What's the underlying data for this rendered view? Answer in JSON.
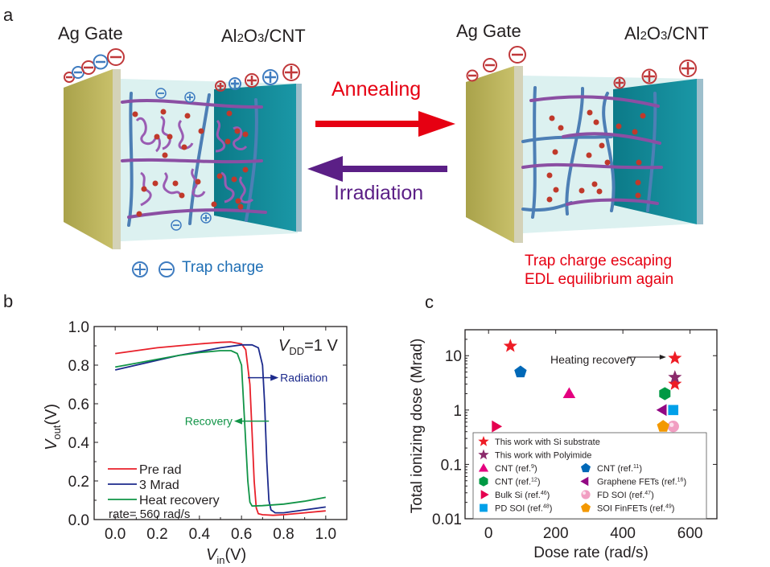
{
  "panels": {
    "a": {
      "letter": "a",
      "left_device": {
        "gate_label": "Ag Gate",
        "channel_label_parts": [
          "Al",
          "2",
          "O",
          "3",
          "/CNT"
        ]
      },
      "right_device": {
        "gate_label": "Ag Gate",
        "channel_label_parts": [
          "Al",
          "2",
          "O",
          "3",
          "/CNT"
        ]
      },
      "arrow_forward": {
        "label": "Annealing",
        "color": "#e60012"
      },
      "arrow_backward": {
        "label": "Irradiation",
        "color": "#5b1f86"
      },
      "left_caption": "Trap charge",
      "right_caption_lines": [
        "Trap charge escaping",
        "EDL equilibrium again"
      ],
      "colors": {
        "gate": "#c0b95a",
        "channel": "#148c9c",
        "gel": "#d8efee",
        "cnt": "#4d7fb5",
        "polymer": "#8b4fa3",
        "ion": "#c0392b",
        "plus_minus_red": "#c0393b",
        "plus_minus_blue": "#3f7cc0",
        "caption_blue": "#1f6fb5",
        "caption_red": "#e60012"
      }
    },
    "b": {
      "letter": "b"
    },
    "c": {
      "letter": "c"
    }
  },
  "chart_data": [
    {
      "type": "line",
      "panel": "b",
      "title": "",
      "xlabel": "V_in (V)",
      "xlabel_main": "V",
      "xlabel_sub": "in",
      "xlabel_unit": "(V)",
      "ylabel_main": "V",
      "ylabel_sub": "out",
      "ylabel_unit": "(V)",
      "xlim": [
        -0.1,
        1.1
      ],
      "ylim": [
        0.0,
        1.0
      ],
      "xticks": [
        0.0,
        0.2,
        0.4,
        0.6,
        0.8,
        1.0
      ],
      "xtick_labels": [
        "0.0",
        "0.2",
        "0.4",
        "0.6",
        "0.8",
        "1.0"
      ],
      "yticks": [
        0.0,
        0.2,
        0.4,
        0.6,
        0.8,
        1.0
      ],
      "ytick_labels": [
        "0.0",
        "0.2",
        "0.4",
        "0.6",
        "0.8",
        "1.0"
      ],
      "grid": false,
      "legend_position": "bottom-left",
      "series": [
        {
          "name": "Pre rad",
          "color": "#e8202a",
          "x": [
            0.0,
            0.1,
            0.2,
            0.3,
            0.4,
            0.5,
            0.55,
            0.6,
            0.62,
            0.64,
            0.65,
            0.66,
            0.67,
            0.68,
            0.7,
            0.75,
            0.8,
            0.9,
            1.0
          ],
          "y": [
            0.86,
            0.875,
            0.89,
            0.9,
            0.91,
            0.918,
            0.92,
            0.91,
            0.88,
            0.7,
            0.45,
            0.2,
            0.06,
            0.03,
            0.025,
            0.022,
            0.025,
            0.035,
            0.045
          ]
        },
        {
          "name": "3  Mrad",
          "color": "#1c2a8c",
          "x": [
            0.0,
            0.1,
            0.2,
            0.3,
            0.4,
            0.5,
            0.6,
            0.65,
            0.68,
            0.7,
            0.71,
            0.72,
            0.73,
            0.74,
            0.76,
            0.8,
            0.9,
            1.0
          ],
          "y": [
            0.775,
            0.8,
            0.825,
            0.85,
            0.87,
            0.89,
            0.905,
            0.905,
            0.89,
            0.8,
            0.6,
            0.3,
            0.1,
            0.05,
            0.035,
            0.035,
            0.05,
            0.065
          ]
        },
        {
          "name": "Heat recovery",
          "color": "#119447",
          "x": [
            0.0,
            0.1,
            0.2,
            0.3,
            0.4,
            0.5,
            0.55,
            0.58,
            0.6,
            0.61,
            0.62,
            0.63,
            0.64,
            0.65,
            0.7,
            0.8,
            0.9,
            1.0
          ],
          "y": [
            0.79,
            0.81,
            0.83,
            0.85,
            0.865,
            0.875,
            0.875,
            0.86,
            0.8,
            0.6,
            0.4,
            0.2,
            0.09,
            0.07,
            0.072,
            0.08,
            0.095,
            0.115
          ]
        }
      ],
      "annotations": [
        {
          "text_main": "V",
          "text_sub": "DD",
          "text_rest": "=1 V",
          "position": "top-right"
        },
        {
          "text": "Radiation",
          "color": "#1c2a8c",
          "arrow": "right",
          "x_from": 0.63,
          "x_to": 0.73,
          "y": 0.735
        },
        {
          "text": "Recovery",
          "color": "#119447",
          "arrow": "left",
          "x_from": 0.73,
          "x_to": 0.58,
          "y": 0.51
        },
        {
          "text": "rate= 560 rad/s",
          "position": "bottom-left"
        }
      ]
    },
    {
      "type": "scatter",
      "panel": "c",
      "title": "",
      "xlabel": "Dose rate (rad/s)",
      "ylabel": "Total ionizing dose (Mrad)",
      "xlim": [
        -70,
        680
      ],
      "ylim": [
        0.01,
        30
      ],
      "yscale": "log",
      "xticks": [
        0,
        200,
        400,
        600
      ],
      "xtick_labels": [
        "0",
        "200",
        "400",
        "600"
      ],
      "yticks": [
        0.01,
        0.1,
        1,
        10
      ],
      "ytick_labels": [
        "0.01",
        "0.1",
        "1",
        "10"
      ],
      "grid": false,
      "legend_position": "bottom",
      "annotation": {
        "text": "Heating recovery",
        "arrow_to": {
          "x": 555,
          "y": 9
        }
      },
      "series": [
        {
          "name": "This work with Si substrate",
          "marker": "star",
          "color": "#ee1c25",
          "points": [
            {
              "x": 65,
              "y": 15
            },
            {
              "x": 555,
              "y": 9
            },
            {
              "x": 555,
              "y": 3
            }
          ]
        },
        {
          "name": "This work with Polyimide",
          "marker": "star",
          "color": "#8b2a6b",
          "points": [
            {
              "x": 555,
              "y": 4
            }
          ]
        },
        {
          "name": "CNT (ref.9)",
          "legend_text": "CNT (ref.",
          "ref": "9",
          "marker": "triangle-up",
          "color": "#e4007f",
          "points": [
            {
              "x": 240,
              "y": 2
            }
          ]
        },
        {
          "name": "CNT (ref.11)",
          "legend_text": "CNT (ref.",
          "ref": "11",
          "marker": "pentagon",
          "color": "#0068b7",
          "points": [
            {
              "x": 95,
              "y": 5
            }
          ]
        },
        {
          "name": "CNT (ref.12)",
          "legend_text": "CNT (ref.",
          "ref": "12",
          "marker": "hexagon",
          "color": "#009944",
          "points": [
            {
              "x": 525,
              "y": 2
            }
          ]
        },
        {
          "name": "Graphene FETs (ref.16)",
          "legend_text": "Graphene FETs (ref.",
          "ref": "16",
          "marker": "triangle-left",
          "color": "#920783",
          "points": [
            {
              "x": 520,
              "y": 1
            }
          ]
        },
        {
          "name": "Bulk Si (ref.46)",
          "legend_text": "Bulk Si (ref.",
          "ref": "46",
          "marker": "triangle-right",
          "color": "#e5004f",
          "points": [
            {
              "x": 20,
              "y": 0.5
            }
          ]
        },
        {
          "name": "FD SOI (ref.47)",
          "legend_text": "FD SOI (ref.",
          "ref": "47",
          "marker": "sphere",
          "color": "#f19ec2",
          "points": [
            {
              "x": 550,
              "y": 0.5
            }
          ]
        },
        {
          "name": "PD SOI (ref.48)",
          "legend_text": "PD SOI (ref.",
          "ref": "48",
          "marker": "square",
          "color": "#00a0e9",
          "points": [
            {
              "x": 550,
              "y": 1
            }
          ]
        },
        {
          "name": "SOI FinFETs (ref.49)",
          "legend_text": "SOI FinFETs (ref.",
          "ref": "49",
          "marker": "pentagon",
          "color": "#f39800",
          "points": [
            {
              "x": 520,
              "y": 0.5
            }
          ]
        }
      ]
    }
  ]
}
